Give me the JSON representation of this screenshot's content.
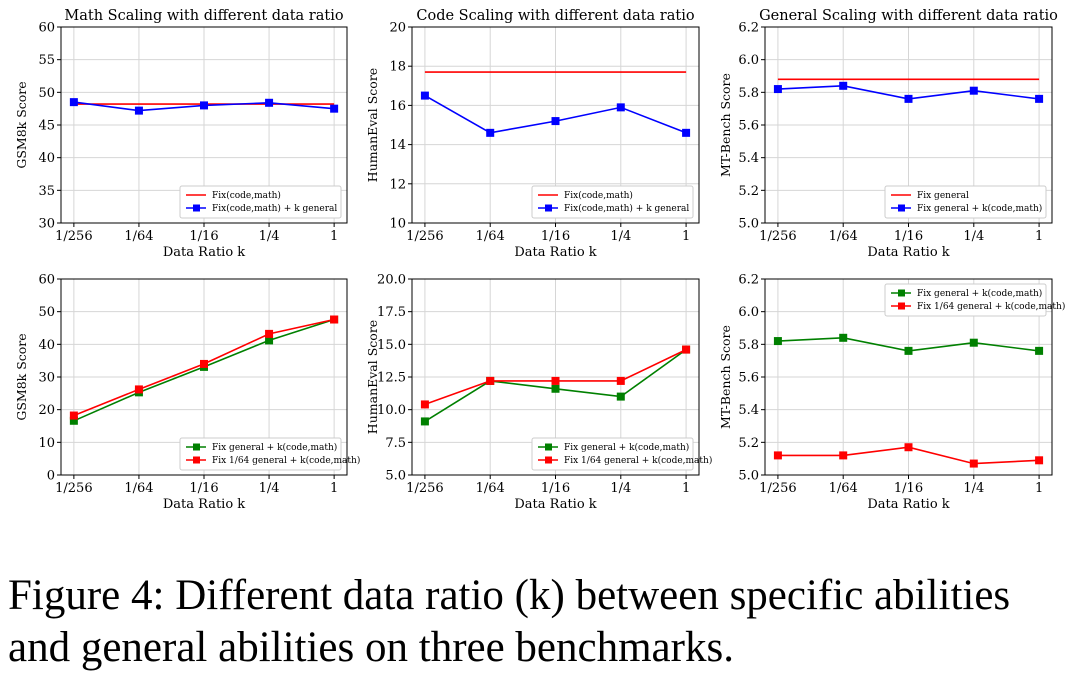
{
  "chart_data": [
    {
      "type": "line",
      "title": "Math Scaling with different data ratio",
      "xlabel": "Data Ratio k",
      "ylabel": "GSM8k Score",
      "categories": [
        "1/256",
        "1/64",
        "1/16",
        "1/4",
        "1"
      ],
      "ylim": [
        30,
        60
      ],
      "yticks": [
        30,
        35,
        40,
        45,
        50,
        55,
        60
      ],
      "ytick_labels": [
        "30",
        "35",
        "40",
        "45",
        "50",
        "55",
        "60"
      ],
      "grid": true,
      "legend_position": "lower-right",
      "series": [
        {
          "name": "Fix(code,math)",
          "color": "#ff0000",
          "marker": "none",
          "values": [
            48.2,
            48.2,
            48.2,
            48.2,
            48.2
          ]
        },
        {
          "name": "Fix(code,math) + k general",
          "color": "#0000ff",
          "marker": "square",
          "values": [
            48.5,
            47.2,
            48.0,
            48.4,
            47.5
          ]
        }
      ]
    },
    {
      "type": "line",
      "title": "Code Scaling with different data ratio",
      "xlabel": "Data Ratio k",
      "ylabel": "HumanEval Score",
      "categories": [
        "1/256",
        "1/64",
        "1/16",
        "1/4",
        "1"
      ],
      "ylim": [
        10,
        20
      ],
      "yticks": [
        10,
        12,
        14,
        16,
        18,
        20
      ],
      "ytick_labels": [
        "10",
        "12",
        "14",
        "16",
        "18",
        "20"
      ],
      "grid": true,
      "legend_position": "lower-right",
      "series": [
        {
          "name": "Fix(code,math)",
          "color": "#ff0000",
          "marker": "none",
          "values": [
            17.7,
            17.7,
            17.7,
            17.7,
            17.7
          ]
        },
        {
          "name": "Fix(code,math) + k general",
          "color": "#0000ff",
          "marker": "square",
          "values": [
            16.5,
            14.6,
            15.2,
            15.9,
            14.6
          ]
        }
      ]
    },
    {
      "type": "line",
      "title": "General Scaling with different data ratio",
      "xlabel": "Data Ratio k",
      "ylabel": "MT-Bench Score",
      "categories": [
        "1/256",
        "1/64",
        "1/16",
        "1/4",
        "1"
      ],
      "ylim": [
        5.0,
        6.2
      ],
      "yticks": [
        5.0,
        5.2,
        5.4,
        5.6,
        5.8,
        6.0,
        6.2
      ],
      "ytick_labels": [
        "5.0",
        "5.2",
        "5.4",
        "5.6",
        "5.8",
        "6.0",
        "6.2"
      ],
      "grid": true,
      "legend_position": "lower-right",
      "series": [
        {
          "name": "Fix general",
          "color": "#ff0000",
          "marker": "none",
          "values": [
            5.88,
            5.88,
            5.88,
            5.88,
            5.88
          ]
        },
        {
          "name": "Fix general + k(code,math)",
          "color": "#0000ff",
          "marker": "square",
          "values": [
            5.82,
            5.84,
            5.76,
            5.81,
            5.76
          ]
        }
      ]
    },
    {
      "type": "line",
      "title": "",
      "xlabel": "Data Ratio k",
      "ylabel": "GSM8k Score",
      "categories": [
        "1/256",
        "1/64",
        "1/16",
        "1/4",
        "1"
      ],
      "ylim": [
        0,
        60
      ],
      "yticks": [
        0,
        10,
        20,
        30,
        40,
        50,
        60
      ],
      "ytick_labels": [
        "0",
        "10",
        "20",
        "30",
        "40",
        "50",
        "60"
      ],
      "grid": true,
      "legend_position": "lower-right",
      "series": [
        {
          "name": "Fix general + k(code,math)",
          "color": "#008000",
          "marker": "square",
          "values": [
            16.6,
            25.3,
            33.1,
            41.2,
            47.6
          ]
        },
        {
          "name": "Fix 1/64 general + k(code,math)",
          "color": "#ff0000",
          "marker": "square",
          "values": [
            18.2,
            26.2,
            34.0,
            43.2,
            47.6
          ]
        }
      ]
    },
    {
      "type": "line",
      "title": "",
      "xlabel": "Data Ratio k",
      "ylabel": "HumanEval Score",
      "categories": [
        "1/256",
        "1/64",
        "1/16",
        "1/4",
        "1"
      ],
      "ylim": [
        5.0,
        20.0
      ],
      "yticks": [
        5.0,
        7.5,
        10.0,
        12.5,
        15.0,
        17.5,
        20.0
      ],
      "ytick_labels": [
        "5.0",
        "7.5",
        "10.0",
        "12.5",
        "15.0",
        "17.5",
        "20.0"
      ],
      "grid": true,
      "legend_position": "lower-right",
      "series": [
        {
          "name": "Fix general + k(code,math)",
          "color": "#008000",
          "marker": "square",
          "values": [
            9.1,
            12.2,
            11.6,
            11.0,
            14.6
          ]
        },
        {
          "name": "Fix 1/64 general + k(code,math)",
          "color": "#ff0000",
          "marker": "square",
          "values": [
            10.4,
            12.2,
            12.2,
            12.2,
            14.6
          ]
        }
      ]
    },
    {
      "type": "line",
      "title": "",
      "xlabel": "Data Ratio k",
      "ylabel": "MT-Bench Score",
      "categories": [
        "1/256",
        "1/64",
        "1/16",
        "1/4",
        "1"
      ],
      "ylim": [
        5.0,
        6.2
      ],
      "yticks": [
        5.0,
        5.2,
        5.4,
        5.6,
        5.8,
        6.0,
        6.2
      ],
      "ytick_labels": [
        "5.0",
        "5.2",
        "5.4",
        "5.6",
        "5.8",
        "6.0",
        "6.2"
      ],
      "grid": true,
      "legend_position": "upper-right",
      "series": [
        {
          "name": "Fix general + k(code,math)",
          "color": "#008000",
          "marker": "square",
          "values": [
            5.82,
            5.84,
            5.76,
            5.81,
            5.76
          ]
        },
        {
          "name": "Fix 1/64 general + k(code,math)",
          "color": "#ff0000",
          "marker": "square",
          "values": [
            5.12,
            5.12,
            5.17,
            5.07,
            5.09
          ]
        }
      ]
    }
  ],
  "caption": {
    "text": "Figure 4: Different data ratio (k) between specific abilities and general abilities on three benchmarks."
  }
}
